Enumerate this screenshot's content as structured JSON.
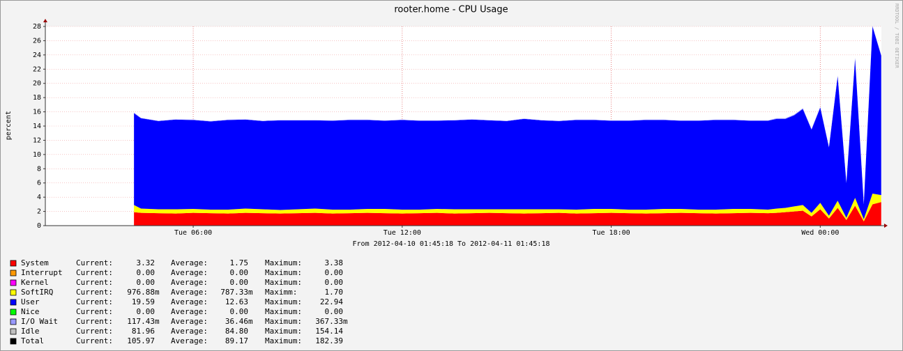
{
  "chart_data": {
    "type": "stacked_area",
    "title": "rooter.home - CPU Usage",
    "y_label": "percent",
    "x_label": "From 2012-04-10 01:45:18 To 2012-04-11 01:45:18",
    "watermark": "RRDTOOL / TOBI OETIKER",
    "xlim": [
      1.755,
      25.755
    ],
    "xticks": [
      {
        "value": 6,
        "label": "Tue 06:00"
      },
      {
        "value": 12,
        "label": "Tue 12:00"
      },
      {
        "value": 18,
        "label": "Tue 18:00"
      },
      {
        "value": 24,
        "label": "Wed 00:00"
      }
    ],
    "ylim": [
      0,
      28
    ],
    "yticks": [
      0,
      2,
      4,
      6,
      8,
      10,
      12,
      14,
      16,
      18,
      20,
      22,
      24,
      26,
      28
    ],
    "grid": true,
    "x": [
      4.3,
      4.5,
      5,
      5.5,
      6,
      6.5,
      7,
      7.5,
      8,
      8.5,
      9,
      9.5,
      10,
      10.5,
      11,
      11.5,
      12,
      12.5,
      13,
      13.5,
      14,
      14.5,
      15,
      15.5,
      16,
      16.5,
      17,
      17.5,
      18,
      18.5,
      19,
      19.5,
      20,
      20.5,
      21,
      21.5,
      22,
      22.5,
      22.75,
      23,
      23.25,
      23.5,
      23.75,
      24,
      24.25,
      24.5,
      24.75,
      25,
      25.25,
      25.5,
      25.75
    ],
    "series": [
      {
        "name": "System",
        "color": "#ff0000",
        "values": [
          1.9,
          1.8,
          1.75,
          1.7,
          1.8,
          1.75,
          1.7,
          1.8,
          1.75,
          1.7,
          1.75,
          1.8,
          1.7,
          1.75,
          1.8,
          1.75,
          1.7,
          1.75,
          1.8,
          1.7,
          1.75,
          1.8,
          1.75,
          1.7,
          1.75,
          1.8,
          1.7,
          1.75,
          1.8,
          1.75,
          1.7,
          1.75,
          1.8,
          1.75,
          1.7,
          1.75,
          1.8,
          1.75,
          1.8,
          1.9,
          2.0,
          2.1,
          1.3,
          2.3,
          1.0,
          2.5,
          0.8,
          2.8,
          0.6,
          3.0,
          3.32
        ],
        "stats": [
          [
            "Current:",
            "3.32"
          ],
          [
            "Average:",
            "1.75"
          ],
          [
            "Maximum:",
            "3.38"
          ]
        ]
      },
      {
        "name": "Interrupt",
        "color": "#ff9900",
        "stats": [
          [
            "Current:",
            "0.00"
          ],
          [
            "Average:",
            "0.00"
          ],
          [
            "Maximum:",
            "0.00"
          ]
        ]
      },
      {
        "name": "Kernel",
        "color": "#ff00ff",
        "stats": [
          [
            "Current:",
            "0.00"
          ],
          [
            "Average:",
            "0.00"
          ],
          [
            "Maximum:",
            "0.00"
          ]
        ]
      },
      {
        "name": "SoftIRQ",
        "color": "#ffff00",
        "values": [
          1.0,
          0.6,
          0.55,
          0.6,
          0.55,
          0.5,
          0.55,
          0.6,
          0.55,
          0.5,
          0.55,
          0.6,
          0.55,
          0.5,
          0.55,
          0.6,
          0.55,
          0.5,
          0.55,
          0.6,
          0.55,
          0.5,
          0.55,
          0.6,
          0.55,
          0.5,
          0.55,
          0.6,
          0.55,
          0.5,
          0.55,
          0.6,
          0.55,
          0.5,
          0.55,
          0.6,
          0.55,
          0.5,
          0.6,
          0.6,
          0.7,
          0.8,
          0.5,
          0.9,
          0.4,
          1.0,
          0.3,
          1.1,
          0.3,
          1.5,
          0.98
        ],
        "stats": [
          [
            "Current:",
            "976.88m"
          ],
          [
            "Average:",
            "787.33m"
          ],
          [
            "Maximm:",
            "1.70"
          ]
        ]
      },
      {
        "name": "User",
        "color": "#0000ff",
        "values": [
          12.9,
          12.7,
          12.4,
          12.6,
          12.5,
          12.4,
          12.6,
          12.5,
          12.4,
          12.6,
          12.5,
          12.4,
          12.5,
          12.6,
          12.5,
          12.4,
          12.6,
          12.5,
          12.4,
          12.5,
          12.6,
          12.5,
          12.4,
          12.7,
          12.5,
          12.4,
          12.6,
          12.5,
          12.4,
          12.5,
          12.6,
          12.5,
          12.4,
          12.5,
          12.6,
          12.5,
          12.4,
          12.5,
          12.6,
          12.5,
          12.8,
          13.5,
          11.7,
          13.4,
          9.6,
          17.5,
          4.9,
          19.6,
          2.1,
          23.5,
          19.59
        ],
        "stats": [
          [
            "Current:",
            "19.59"
          ],
          [
            "Average:",
            "12.63"
          ],
          [
            "Maximum:",
            "22.94"
          ]
        ]
      },
      {
        "name": "Nice",
        "color": "#00ff00",
        "stats": [
          [
            "Current:",
            "0.00"
          ],
          [
            "Average:",
            "0.00"
          ],
          [
            "Maximum:",
            "0.00"
          ]
        ]
      },
      {
        "name": "I/O Wait",
        "color": "#9999ff",
        "values": [
          0.1,
          0.05,
          0.05,
          0.05,
          0.05,
          0.05,
          0.05,
          0.05,
          0.05,
          0.05,
          0.05,
          0.05,
          0.05,
          0.05,
          0.05,
          0.05,
          0.05,
          0.05,
          0.05,
          0.05,
          0.05,
          0.05,
          0.05,
          0.05,
          0.05,
          0.05,
          0.05,
          0.05,
          0.05,
          0.05,
          0.05,
          0.05,
          0.05,
          0.05,
          0.05,
          0.05,
          0.05,
          0.05,
          0.1,
          0.1,
          0.1,
          0.1,
          0.1,
          0.1,
          0.1,
          0.1,
          0.1,
          0.1,
          0.1,
          0.1,
          0.12
        ],
        "stats": [
          [
            "Current:",
            "117.43m"
          ],
          [
            "Average:",
            "36.46m"
          ],
          [
            "Maximum:",
            "367.33m"
          ]
        ]
      },
      {
        "name": "Idle",
        "color": "#c0c0c0",
        "stats": [
          [
            "Current:",
            "81.96"
          ],
          [
            "Average:",
            "84.80"
          ],
          [
            "Maximum:",
            "154.14"
          ]
        ]
      },
      {
        "name": "Total",
        "color": "#000000",
        "stats": [
          [
            "Current:",
            "105.97"
          ],
          [
            "Average:",
            "89.17"
          ],
          [
            "Maximum:",
            "182.39"
          ]
        ]
      }
    ]
  }
}
